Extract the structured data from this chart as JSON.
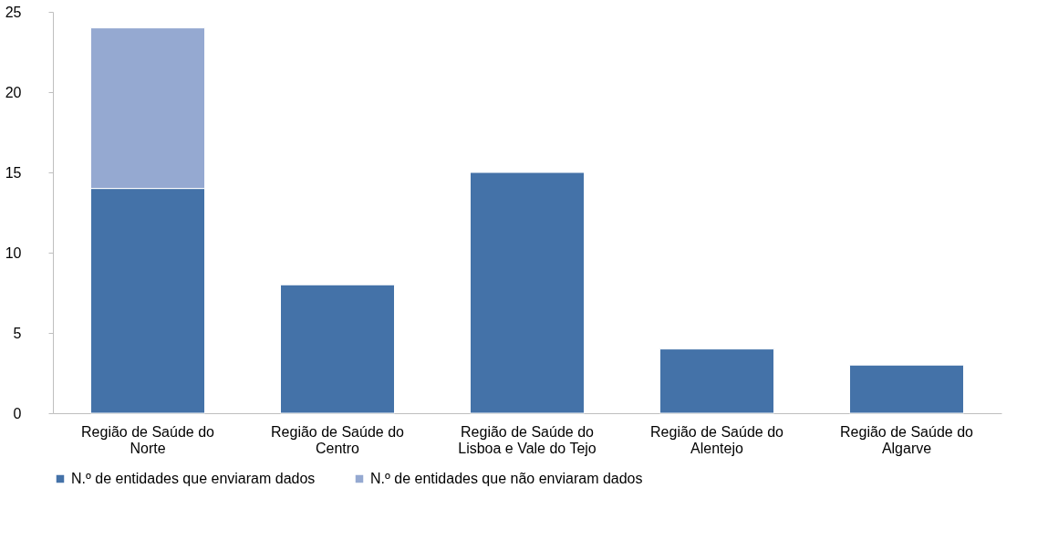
{
  "chart_data": {
    "type": "bar",
    "stacked": true,
    "categories": [
      "Região de Saúde do Norte",
      "Região de Saúde do Centro",
      "Região de Saúde do Lisboa e Vale do Tejo",
      "Região de Saúde do Alentejo",
      "Região de Saúde do Algarve"
    ],
    "series": [
      {
        "name": "N.º de entidades que enviaram dados",
        "color": "#4472a8",
        "values": [
          14,
          8,
          15,
          4,
          3
        ]
      },
      {
        "name": "N.º de entidades que não enviaram dados",
        "color": "#95a9d1",
        "values": [
          10,
          null,
          null,
          null,
          null
        ]
      }
    ],
    "ylim": [
      0,
      25
    ],
    "yticks": [
      0,
      5,
      10,
      15,
      20,
      25
    ],
    "grid": false,
    "legend": "bottom"
  }
}
